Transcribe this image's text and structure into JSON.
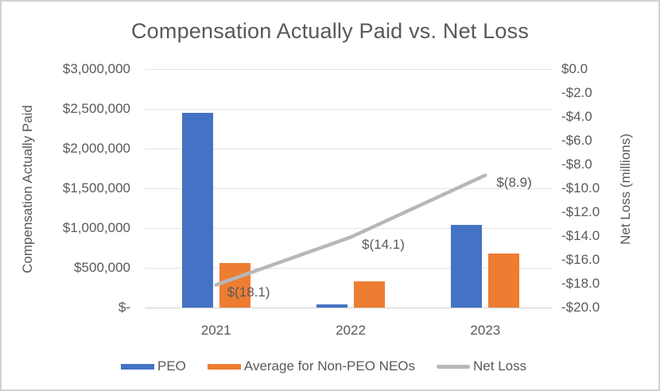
{
  "chart_data": {
    "type": "combo-bar-line",
    "title": "Compensation Actually Paid vs. Net Loss",
    "categories": [
      "2021",
      "2022",
      "2023"
    ],
    "bar_series": [
      {
        "name": "PEO",
        "color": "#4472C4",
        "values": [
          2450000,
          40000,
          1040000
        ]
      },
      {
        "name": "Average for Non-PEO NEOs",
        "color": "#ED7D31",
        "values": [
          560000,
          330000,
          680000
        ]
      }
    ],
    "line_series": {
      "name": "Net Loss",
      "color": "#b7b7b7",
      "values_millions": [
        -18.1,
        -14.1,
        -8.9
      ],
      "labels": [
        "$(18.1)",
        "$(14.1)",
        "$(8.9)"
      ]
    },
    "left_axis": {
      "title": "Compensation Actually Paid",
      "min": 0,
      "max": 3000000,
      "ticks": [
        "$3,000,000",
        "$2,500,000",
        "$2,000,000",
        "$1,500,000",
        "$1,000,000",
        "$500,000",
        "$-"
      ]
    },
    "right_axis": {
      "title": "Net Loss (millions)",
      "min": -20,
      "max": 0,
      "ticks": [
        "$0.0",
        "-$2.0",
        "-$4.0",
        "-$6.0",
        "-$8.0",
        "-$10.0",
        "-$12.0",
        "-$14.0",
        "-$16.0",
        "-$18.0",
        "-$20.0"
      ]
    },
    "legend_position": "bottom",
    "gridlines": true
  }
}
